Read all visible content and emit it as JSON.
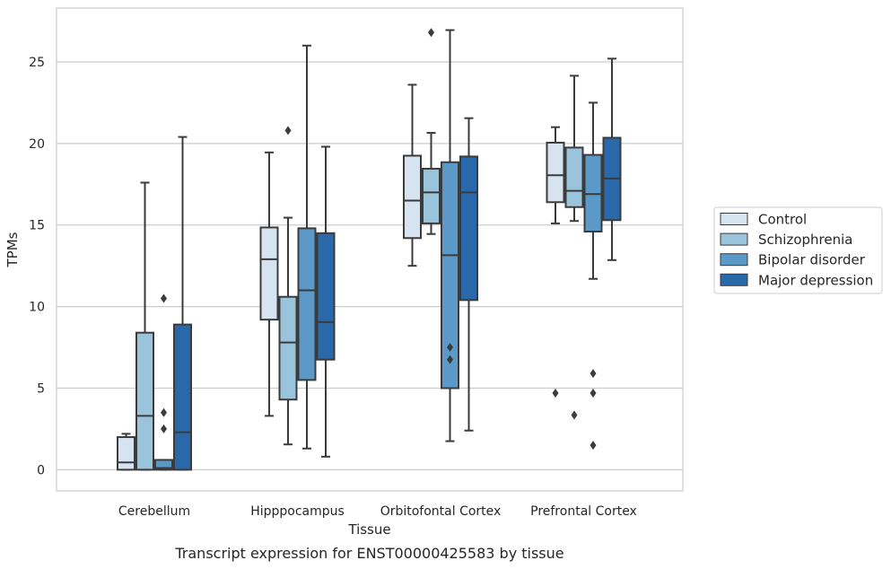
{
  "caption": "Transcript expression for ENST00000425583 by tissue",
  "chart_data": {
    "type": "boxplot",
    "xlabel": "Tissue",
    "ylabel": "TPMs",
    "ylim": [
      -1.3,
      28.3
    ],
    "yticks": [
      0,
      5,
      10,
      15,
      20,
      25
    ],
    "grid": true,
    "legend_position": "right",
    "categories": [
      "Cerebellum",
      "Hipppocampus",
      "Orbitofontal Cortex",
      "Prefrontal Cortex"
    ],
    "series": [
      {
        "name": "Control",
        "color": "#d6e4f2",
        "boxes": [
          {
            "whislo": 0,
            "q1": 0,
            "med": 0.45,
            "q3": 2.0,
            "whishi": 2.2,
            "fliers": []
          },
          {
            "whislo": 3.3,
            "q1": 9.2,
            "med": 12.9,
            "q3": 14.85,
            "whishi": 19.45,
            "fliers": []
          },
          {
            "whislo": 12.5,
            "q1": 14.2,
            "med": 16.5,
            "q3": 19.25,
            "whishi": 23.6,
            "fliers": []
          },
          {
            "whislo": 15.1,
            "q1": 16.4,
            "med": 18.05,
            "q3": 20.05,
            "whishi": 21.0,
            "fliers": [
              4.7
            ]
          }
        ]
      },
      {
        "name": "Schizophrenia",
        "color": "#9ac3dc",
        "boxes": [
          {
            "whislo": 0,
            "q1": 0,
            "med": 3.3,
            "q3": 8.4,
            "whishi": 17.6,
            "fliers": []
          },
          {
            "whislo": 1.55,
            "q1": 4.3,
            "med": 7.8,
            "q3": 10.6,
            "whishi": 15.45,
            "fliers": [
              20.8
            ]
          },
          {
            "whislo": 14.45,
            "q1": 15.1,
            "med": 17.0,
            "q3": 18.45,
            "whishi": 20.65,
            "fliers": [
              26.8
            ]
          },
          {
            "whislo": 15.25,
            "q1": 16.1,
            "med": 17.1,
            "q3": 19.75,
            "whishi": 24.15,
            "fliers": [
              3.35
            ]
          }
        ]
      },
      {
        "name": "Bipolar disorder",
        "color": "#5b9ac8",
        "boxes": [
          {
            "whislo": 0,
            "q1": 0,
            "med": 0.1,
            "q3": 0.6,
            "whishi": 0.6,
            "fliers": [
              10.5,
              3.5,
              2.5
            ]
          },
          {
            "whislo": 1.3,
            "q1": 5.5,
            "med": 11.0,
            "q3": 14.8,
            "whishi": 26.0,
            "fliers": []
          },
          {
            "whislo": 1.75,
            "q1": 5.0,
            "med": 13.15,
            "q3": 18.85,
            "whishi": 26.95,
            "fliers": [
              7.5,
              6.75
            ]
          },
          {
            "whislo": 11.7,
            "q1": 14.6,
            "med": 16.9,
            "q3": 19.3,
            "whishi": 22.5,
            "fliers": [
              5.9,
              4.7,
              1.5
            ]
          }
        ]
      },
      {
        "name": "Major depression",
        "color": "#2a69a9",
        "boxes": [
          {
            "whislo": 0,
            "q1": 0,
            "med": 2.3,
            "q3": 8.9,
            "whishi": 20.4,
            "fliers": []
          },
          {
            "whislo": 0.8,
            "q1": 6.75,
            "med": 9.05,
            "q3": 14.5,
            "whishi": 19.8,
            "fliers": []
          },
          {
            "whislo": 2.4,
            "q1": 10.4,
            "med": 17.0,
            "q3": 19.2,
            "whishi": 21.55,
            "fliers": []
          },
          {
            "whislo": 12.85,
            "q1": 15.3,
            "med": 17.85,
            "q3": 20.35,
            "whishi": 25.2,
            "fliers": []
          }
        ]
      }
    ]
  }
}
